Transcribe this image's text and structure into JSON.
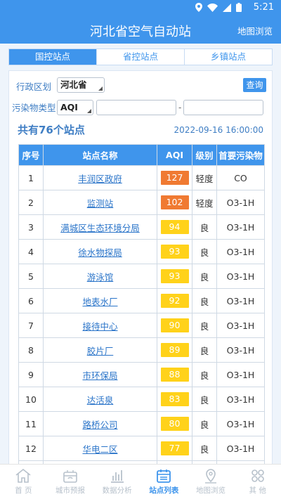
{
  "status_bar": {
    "time": "5:21"
  },
  "app": {
    "title": "河北省空气自动站",
    "map_link": "地图浏览"
  },
  "tabs": [
    {
      "label": "国控站点",
      "active": true
    },
    {
      "label": "省控站点",
      "active": false
    },
    {
      "label": "乡镇站点",
      "active": false
    }
  ],
  "filters": {
    "region_label": "行政区划",
    "region_value": "河北省",
    "pollutant_label": "污染物类型",
    "pollutant_value": "AQI",
    "range_from": "",
    "range_to": "",
    "range_separator": "-",
    "query_label": "查询"
  },
  "summary": {
    "count_text": "共有76个站点",
    "timestamp": "2022-09-16 16:00:00"
  },
  "table": {
    "headers": [
      "序号",
      "站点名称",
      "AQI",
      "级别",
      "首要污染物"
    ],
    "rows": [
      {
        "no": "1",
        "name": "丰润区政府",
        "aqi": "127",
        "level": "轻度",
        "pollutant": "CO",
        "color": "#f07a32"
      },
      {
        "no": "2",
        "name": "监测站",
        "aqi": "102",
        "level": "轻度",
        "pollutant": "O3-1H",
        "color": "#f07a32"
      },
      {
        "no": "3",
        "name": "满城区生态环境分局",
        "aqi": "94",
        "level": "良",
        "pollutant": "O3-1H",
        "color": "#ffd21a"
      },
      {
        "no": "4",
        "name": "徐水物探局",
        "aqi": "93",
        "level": "良",
        "pollutant": "O3-1H",
        "color": "#ffd21a"
      },
      {
        "no": "5",
        "name": "游泳馆",
        "aqi": "93",
        "level": "良",
        "pollutant": "O3-1H",
        "color": "#ffd21a"
      },
      {
        "no": "6",
        "name": "地表水厂",
        "aqi": "92",
        "level": "良",
        "pollutant": "O3-1H",
        "color": "#ffd21a"
      },
      {
        "no": "7",
        "name": "接待中心",
        "aqi": "90",
        "level": "良",
        "pollutant": "O3-1H",
        "color": "#ffd21a"
      },
      {
        "no": "8",
        "name": "胶片厂",
        "aqi": "89",
        "level": "良",
        "pollutant": "O3-1H",
        "color": "#ffd21a"
      },
      {
        "no": "9",
        "name": "市环保局",
        "aqi": "88",
        "level": "良",
        "pollutant": "O3-1H",
        "color": "#ffd21a"
      },
      {
        "no": "10",
        "name": "达活泉",
        "aqi": "83",
        "level": "良",
        "pollutant": "O3-1H",
        "color": "#ffd21a"
      },
      {
        "no": "11",
        "name": "路桥公司",
        "aqi": "80",
        "level": "良",
        "pollutant": "O3-1H",
        "color": "#ffd21a"
      },
      {
        "no": "12",
        "name": "华电二区",
        "aqi": "77",
        "level": "良",
        "pollutant": "O3-1H",
        "color": "#ffd21a"
      },
      {
        "no": "",
        "name": "",
        "aqi": "",
        "level": "",
        "pollutant": "",
        "color": "#ffd21a"
      }
    ]
  },
  "bottom_nav": [
    {
      "label": "首 页",
      "icon": "home-icon",
      "active": false
    },
    {
      "label": "城市预报",
      "icon": "city-forecast-icon",
      "active": false
    },
    {
      "label": "数据分析",
      "icon": "bar-chart-icon",
      "active": false
    },
    {
      "label": "站点列表",
      "icon": "calendar-list-icon",
      "active": true
    },
    {
      "label": "地图浏览",
      "icon": "map-pin-icon",
      "active": false
    },
    {
      "label": "其 他",
      "icon": "grid-icon",
      "active": false
    }
  ]
}
